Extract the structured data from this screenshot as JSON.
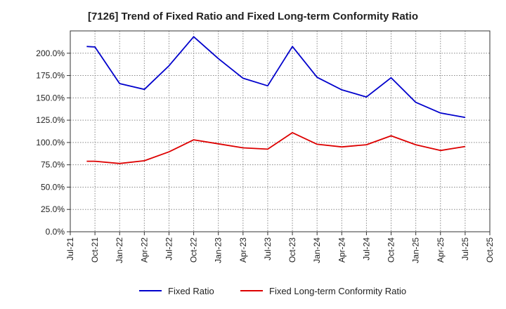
{
  "chart_data": {
    "type": "line",
    "title": "[7126]  Trend of Fixed Ratio and Fixed Long-term Conformity Ratio",
    "xlabel": "",
    "ylabel": "",
    "ylim": [
      0,
      225
    ],
    "y_ticks": [
      "0.0%",
      "25.0%",
      "50.0%",
      "75.0%",
      "100.0%",
      "125.0%",
      "150.0%",
      "175.0%",
      "200.0%"
    ],
    "y_tick_values": [
      0,
      25,
      50,
      75,
      100,
      125,
      150,
      175,
      200
    ],
    "x_ticks": [
      "Jul-21",
      "Oct-21",
      "Jan-22",
      "Apr-22",
      "Jul-22",
      "Oct-22",
      "Jan-23",
      "Apr-23",
      "Jul-23",
      "Oct-23",
      "Jan-24",
      "Apr-24",
      "Jul-24",
      "Oct-24",
      "Jan-25",
      "Apr-25",
      "Jul-25",
      "Oct-25"
    ],
    "x": [
      "Sep-21",
      "Oct-21",
      "Jan-22",
      "Apr-22",
      "Jul-22",
      "Oct-22",
      "Jan-23",
      "Apr-23",
      "Jul-23",
      "Oct-23",
      "Jan-24",
      "Apr-24",
      "Jul-24",
      "Oct-24",
      "Jan-25",
      "Apr-25",
      "Jul-25"
    ],
    "grid": true,
    "legend_position": "bottom",
    "series": [
      {
        "name": "Fixed Ratio",
        "color": "#0000cc",
        "values": [
          207.5,
          207.0,
          166.0,
          159.5,
          186.0,
          218.5,
          194.0,
          172.0,
          163.5,
          207.5,
          173.0,
          159.0,
          151.0,
          172.5,
          145.0,
          133.0,
          128.0
        ]
      },
      {
        "name": "Fixed Long-term Conformity Ratio",
        "color": "#dd0000",
        "values": [
          79.0,
          79.0,
          76.5,
          79.5,
          89.5,
          103.0,
          98.5,
          94.0,
          92.5,
          111.0,
          98.0,
          95.0,
          97.5,
          107.5,
          97.5,
          91.0,
          95.5
        ]
      }
    ]
  }
}
